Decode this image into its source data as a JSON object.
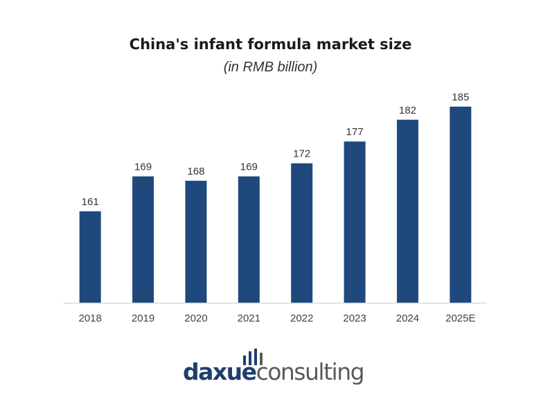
{
  "chart_data": {
    "type": "bar",
    "title": "China's infant formula market size",
    "subtitle": "(in RMB billion)",
    "categories": [
      "2018",
      "2019",
      "2020",
      "2021",
      "2022",
      "2023",
      "2024",
      "2025E"
    ],
    "values": [
      161,
      169,
      168,
      169,
      172,
      177,
      182,
      185
    ],
    "value_labels": [
      "161",
      "169",
      "168",
      "169",
      "172",
      "177",
      "182",
      "185"
    ],
    "ylim": [
      140,
      188
    ],
    "bar_color": "#1f497d",
    "axis_color": "#d9d9d9",
    "grid": false,
    "legend": "none"
  },
  "logo": {
    "part1": "daxue",
    "part2": "consulting",
    "primary_color": "#1f3f6e",
    "secondary_color": "#5a5a5a"
  }
}
